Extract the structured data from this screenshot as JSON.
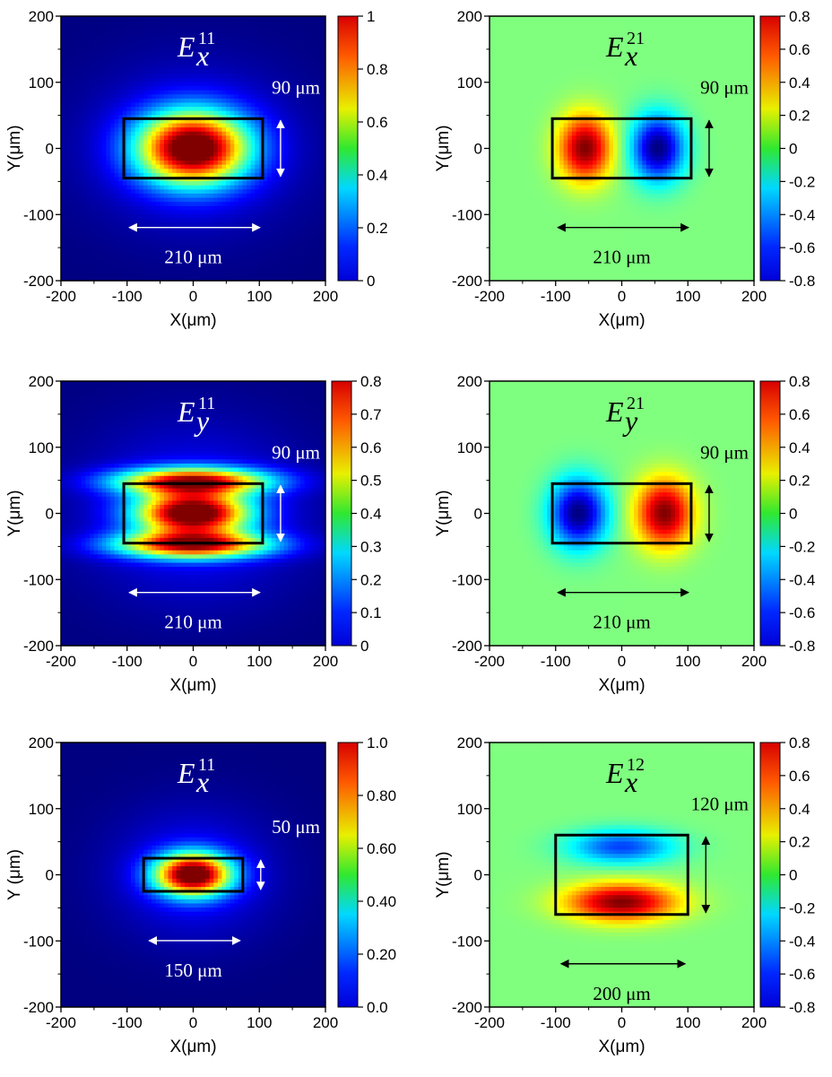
{
  "chart_data": [
    {
      "type": "heatmap",
      "title_main": "E",
      "title_sub": "x",
      "title_sup": "11",
      "xlabel": "X(μm)",
      "ylabel": "Y(μm)",
      "xlim": [
        -200,
        200
      ],
      "ylim": [
        -200,
        200
      ],
      "x_ticks": [
        "-200",
        "-100",
        "0",
        "100",
        "200"
      ],
      "y_ticks": [
        "200",
        "100",
        "0",
        "-100",
        "-200"
      ],
      "colorbar": {
        "range": [
          0,
          1
        ],
        "ticks": [
          "1",
          "0.8",
          "0.6",
          "0.4",
          "0.2",
          "0"
        ]
      },
      "rect": {
        "x": [
          -105,
          105
        ],
        "y": [
          -45,
          45
        ]
      },
      "width_label": "210 μm",
      "height_label": "90 μm",
      "annotation_color": "#ffffff",
      "background": "#0a3cf0",
      "field": {
        "kind": "lobe",
        "lobes": [
          {
            "x": 0,
            "y": 0,
            "sx": 58,
            "sy": 38,
            "amp": 1.0
          }
        ],
        "halo": {
          "rx": 190,
          "ry": 150,
          "amp": 0.14
        }
      }
    },
    {
      "type": "heatmap",
      "title_main": "E",
      "title_sub": "x",
      "title_sup": "21",
      "xlabel": "X(μm)",
      "ylabel": "Y(μm)",
      "xlim": [
        -200,
        200
      ],
      "ylim": [
        -200,
        200
      ],
      "x_ticks": [
        "-200",
        "-100",
        "0",
        "100",
        "200"
      ],
      "y_ticks": [
        "200",
        "100",
        "0",
        "-100",
        "-200"
      ],
      "colorbar": {
        "range": [
          -0.8,
          0.8
        ],
        "ticks": [
          "0.8",
          "0.6",
          "0.4",
          "0.2",
          "0",
          "-0.2",
          "-0.4",
          "-0.6",
          "-0.8"
        ]
      },
      "rect": {
        "x": [
          -105,
          105
        ],
        "y": [
          -45,
          45
        ]
      },
      "width_label": "210 μm",
      "height_label": "90 μm",
      "annotation_color": "#000000",
      "background": "#39e23c",
      "field": {
        "kind": "lobe",
        "lobes": [
          {
            "x": -55,
            "y": 0,
            "sx": 28,
            "sy": 35,
            "amp": 0.8
          },
          {
            "x": 55,
            "y": 0,
            "sx": 28,
            "sy": 35,
            "amp": -0.8
          }
        ]
      }
    },
    {
      "type": "heatmap",
      "title_main": "E",
      "title_sub": "y",
      "title_sup": "11",
      "xlabel": "X(μm)",
      "ylabel": "Y(μm)",
      "xlim": [
        -200,
        200
      ],
      "ylim": [
        -200,
        200
      ],
      "x_ticks": [
        "-200",
        "-100",
        "0",
        "100",
        "200"
      ],
      "y_ticks": [
        "200",
        "100",
        "0",
        "-100",
        "-200"
      ],
      "colorbar": {
        "range": [
          0,
          0.8
        ],
        "ticks": [
          "0.8",
          "0.7",
          "0.6",
          "0.5",
          "0.4",
          "0.3",
          "0.2",
          "0.1",
          "0"
        ]
      },
      "rect": {
        "x": [
          -105,
          105
        ],
        "y": [
          -45,
          45
        ]
      },
      "width_label": "210 μm",
      "height_label": "90 μm",
      "annotation_color": "#ffffff",
      "background": "#0a3cf0",
      "field": {
        "kind": "lobe",
        "lobes": [
          {
            "x": 0,
            "y": 0,
            "sx": 58,
            "sy": 22,
            "amp": 0.8
          },
          {
            "x": 0,
            "y": 48,
            "sx": 80,
            "sy": 14,
            "amp": 0.68
          },
          {
            "x": 0,
            "y": -48,
            "sx": 80,
            "sy": 14,
            "amp": 0.68
          }
        ],
        "halo": {
          "rx": 200,
          "ry": 160,
          "amp": 0.12
        }
      }
    },
    {
      "type": "heatmap",
      "title_main": "E",
      "title_sub": "y",
      "title_sup": "21",
      "xlabel": "X(μm)",
      "ylabel": "Y(μm)",
      "xlim": [
        -200,
        200
      ],
      "ylim": [
        -200,
        200
      ],
      "x_ticks": [
        "-200",
        "-100",
        "0",
        "100",
        "200"
      ],
      "y_ticks": [
        "200",
        "100",
        "0",
        "-100",
        "-200"
      ],
      "colorbar": {
        "range": [
          -0.8,
          0.8
        ],
        "ticks": [
          "0.8",
          "0.6",
          "0.4",
          "0.2",
          "0",
          "-0.2",
          "-0.4",
          "-0.6",
          "-0.8"
        ]
      },
      "rect": {
        "x": [
          -105,
          105
        ],
        "y": [
          -45,
          45
        ]
      },
      "width_label": "210 μm",
      "height_label": "90 μm",
      "annotation_color": "#000000",
      "background": "#39e23c",
      "field": {
        "kind": "lobe",
        "lobes": [
          {
            "x": -65,
            "y": 0,
            "sx": 30,
            "sy": 36,
            "amp": -0.8
          },
          {
            "x": 65,
            "y": 0,
            "sx": 30,
            "sy": 36,
            "amp": 0.8
          }
        ]
      }
    },
    {
      "type": "heatmap",
      "title_main": "E",
      "title_sub": "x",
      "title_sup": "11",
      "xlabel": "X(μm)",
      "ylabel": "Y (μm)",
      "xlim": [
        -200,
        200
      ],
      "ylim": [
        -200,
        200
      ],
      "x_ticks": [
        "-200",
        "-100",
        "0",
        "100",
        "200"
      ],
      "y_ticks": [
        "200",
        "100",
        "0",
        "-100",
        "-200"
      ],
      "colorbar": {
        "range": [
          0,
          1
        ],
        "ticks": [
          "1.0",
          "0.80",
          "0.60",
          "0.40",
          "0.20",
          "0.0"
        ]
      },
      "rect": {
        "x": [
          -75,
          75
        ],
        "y": [
          -25,
          25
        ]
      },
      "width_label": "150 μm",
      "height_label": "50 μm",
      "annotation_color": "#ffffff",
      "background": "#0a3cf0",
      "field": {
        "kind": "lobe",
        "lobes": [
          {
            "x": 0,
            "y": 0,
            "sx": 40,
            "sy": 22,
            "amp": 1.0
          }
        ],
        "halo": {
          "rx": 150,
          "ry": 120,
          "amp": 0.14
        }
      }
    },
    {
      "type": "heatmap",
      "title_main": "E",
      "title_sub": "x",
      "title_sup": "12",
      "xlabel": "X(μm)",
      "ylabel": "Y(μm)",
      "xlim": [
        -200,
        200
      ],
      "ylim": [
        -200,
        200
      ],
      "x_ticks": [
        "-200",
        "-100",
        "0",
        "100",
        "200"
      ],
      "y_ticks": [
        "200",
        "100",
        "0",
        "-100",
        "-200"
      ],
      "colorbar": {
        "range": [
          -0.8,
          0.8
        ],
        "ticks": [
          "0.8",
          "0.6",
          "0.4",
          "0.2",
          "0",
          "-0.2",
          "-0.4",
          "-0.6",
          "-0.8"
        ]
      },
      "rect": {
        "x": [
          -100,
          100
        ],
        "y": [
          -60,
          60
        ]
      },
      "width_label": "200 μm",
      "height_label": "120 μm",
      "annotation_color": "#000000",
      "background": "#39e23c",
      "field": {
        "kind": "lobe",
        "lobes": [
          {
            "x": 0,
            "y": 42,
            "sx": 55,
            "sy": 18,
            "amp": -0.5
          },
          {
            "x": 0,
            "y": -42,
            "sx": 58,
            "sy": 20,
            "amp": 0.8
          }
        ]
      }
    }
  ]
}
